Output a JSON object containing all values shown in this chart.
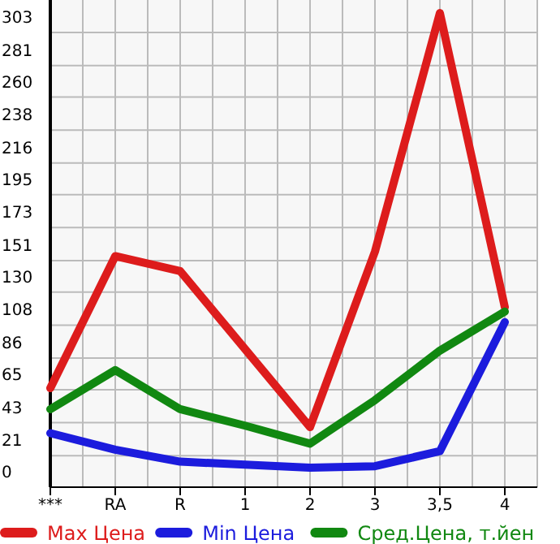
{
  "chart_data": {
    "type": "line",
    "categories": [
      "***",
      "RA",
      "R",
      "1",
      "2",
      "3",
      "3,5",
      "4"
    ],
    "series": [
      {
        "name": "Max Цена",
        "color": "#dd1c1c",
        "values": [
          66,
          154,
          144,
          92,
          40,
          157,
          316,
          120
        ]
      },
      {
        "name": "Min Цена",
        "color": "#1c1cdd",
        "values": [
          36,
          25,
          17,
          15,
          13,
          14,
          24,
          110
        ]
      },
      {
        "name": "Сред.Цена, т.йен",
        "color": "#118811",
        "values": [
          52,
          78,
          52,
          41,
          29,
          58,
          91,
          117
        ]
      }
    ],
    "ylim": [
      0,
      324.7
    ],
    "yticks": [
      0,
      21,
      43,
      65,
      86,
      108,
      130,
      151,
      173,
      195,
      216,
      238,
      260,
      281,
      303
    ],
    "grid": true,
    "legend": "bottom",
    "marker": "none",
    "line_style": "solid"
  }
}
